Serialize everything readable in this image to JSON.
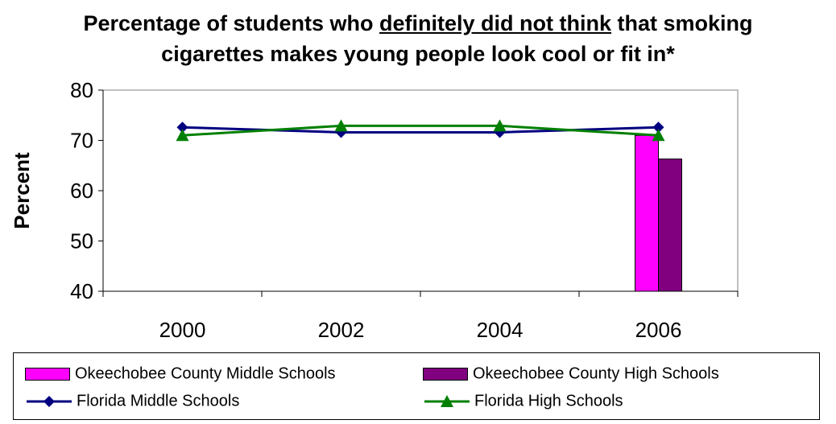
{
  "title": {
    "line1_pre": "Percentage of students who ",
    "line1_underlined": "definitely did not think",
    "line1_post": " that smoking",
    "line2": "cigarettes makes young people look cool or fit in*"
  },
  "chart_data": {
    "type": "bar",
    "title": "Percentage of students who definitely did not think that smoking cigarettes makes young people look cool or fit in*",
    "ylabel": "Percent",
    "xlabel": "",
    "ylim": [
      40,
      80
    ],
    "yticks": [
      "40",
      "50",
      "60",
      "70",
      "80"
    ],
    "categories": [
      "2000",
      "2002",
      "2004",
      "2006"
    ],
    "grid": false,
    "legend_position": "bottom",
    "series": [
      {
        "name": "Okeechobee County Middle Schools",
        "kind": "bar",
        "color": "#ff00ff",
        "values": [
          null,
          null,
          null,
          71
        ]
      },
      {
        "name": "Okeechobee County High Schools",
        "kind": "bar",
        "color": "#800080",
        "values": [
          null,
          null,
          null,
          66.3
        ]
      },
      {
        "name": "Florida Middle Schools",
        "kind": "line",
        "marker": "diamond",
        "color": "#000080",
        "values": [
          72.6,
          71.6,
          71.6,
          72.6
        ]
      },
      {
        "name": "Florida High Schools",
        "kind": "line",
        "marker": "triangle",
        "color": "#008000",
        "values": [
          71.0,
          72.9,
          72.9,
          71.0
        ]
      }
    ]
  }
}
